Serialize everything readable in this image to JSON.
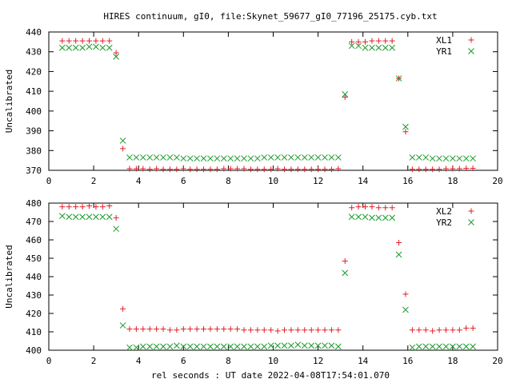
{
  "title": "HIRES continuum, gI0, file:Skynet_59677_gI0_77196_25175.cyb.txt",
  "xlabel": "rel seconds : UT date 2022-04-08T17:54:01.070",
  "chart_data": [
    {
      "type": "scatter",
      "ylabel": "Uncalibrated",
      "xlim": [
        0,
        20
      ],
      "ylim": [
        370,
        440
      ],
      "xticks": [
        0,
        2,
        4,
        6,
        8,
        10,
        12,
        14,
        16,
        18,
        20
      ],
      "yticks": [
        370,
        380,
        390,
        400,
        410,
        420,
        430,
        440
      ],
      "legend": "top-right",
      "series": [
        {
          "name": "XL1",
          "marker": "plus",
          "color": "#e0202a",
          "x": [
            0.6,
            0.9,
            1.2,
            1.5,
            1.8,
            2.1,
            2.4,
            2.7,
            3.0,
            3.3,
            3.6,
            3.9,
            4.2,
            4.5,
            4.8,
            5.1,
            5.4,
            5.7,
            6.0,
            6.3,
            6.6,
            6.9,
            7.2,
            7.5,
            7.8,
            8.1,
            8.4,
            8.7,
            9.0,
            9.3,
            9.6,
            9.9,
            10.2,
            10.5,
            10.8,
            11.1,
            11.4,
            11.7,
            12.0,
            12.3,
            12.6,
            12.9,
            13.2,
            13.5,
            13.8,
            14.1,
            14.4,
            14.7,
            15.0,
            15.3,
            15.6,
            15.9,
            16.2,
            16.5,
            16.8,
            17.1,
            17.4,
            17.7,
            18.0,
            18.3,
            18.6,
            18.9
          ],
          "y": [
            435.5,
            435.5,
            435.5,
            435.5,
            435.5,
            435.5,
            435.5,
            435.5,
            429.5,
            381,
            370.8,
            370.8,
            370.8,
            370.5,
            370.8,
            370.5,
            370.5,
            370.5,
            370.8,
            370.5,
            370.5,
            370.5,
            370.5,
            370.5,
            370.8,
            370.8,
            370.8,
            370.8,
            370.5,
            370.5,
            370.5,
            370.5,
            370.8,
            370.5,
            370.5,
            370.5,
            370.5,
            370.5,
            370.5,
            370.5,
            370.5,
            370.8,
            407,
            435,
            435,
            435,
            435.5,
            435.5,
            435.5,
            435.5,
            416.5,
            389.5,
            370.5,
            370.5,
            370.5,
            370.5,
            370.5,
            370.8,
            370.8,
            370.8,
            371,
            371
          ]
        },
        {
          "name": "YR1",
          "marker": "cross",
          "color": "#1a9a2a",
          "x": [
            0.6,
            0.9,
            1.2,
            1.5,
            1.8,
            2.1,
            2.4,
            2.7,
            3.0,
            3.3,
            3.6,
            3.9,
            4.2,
            4.5,
            4.8,
            5.1,
            5.4,
            5.7,
            6.0,
            6.3,
            6.6,
            6.9,
            7.2,
            7.5,
            7.8,
            8.1,
            8.4,
            8.7,
            9.0,
            9.3,
            9.6,
            9.9,
            10.2,
            10.5,
            10.8,
            11.1,
            11.4,
            11.7,
            12.0,
            12.3,
            12.6,
            12.9,
            13.2,
            13.5,
            13.8,
            14.1,
            14.4,
            14.7,
            15.0,
            15.3,
            15.6,
            15.9,
            16.2,
            16.5,
            16.8,
            17.1,
            17.4,
            17.7,
            18.0,
            18.3,
            18.6,
            18.9
          ],
          "y": [
            432,
            432,
            432,
            432,
            432.5,
            432.5,
            432,
            432,
            427.5,
            385,
            376.5,
            376.5,
            376.5,
            376.5,
            376.5,
            376.5,
            376.5,
            376.5,
            376,
            376,
            376,
            376,
            376,
            376,
            376,
            376,
            376,
            376,
            376,
            376,
            376.5,
            376.5,
            376.5,
            376.5,
            376.5,
            376.5,
            376.5,
            376.5,
            376.5,
            376.5,
            376.5,
            376.5,
            408.5,
            433,
            433,
            432,
            432,
            432,
            432,
            432,
            416.5,
            392,
            376.5,
            376.5,
            376.5,
            376,
            376,
            376,
            376,
            376,
            376,
            376
          ]
        }
      ]
    },
    {
      "type": "scatter",
      "ylabel": "Uncalibrated",
      "xlim": [
        0,
        20
      ],
      "ylim": [
        400,
        480
      ],
      "xticks": [
        0,
        2,
        4,
        6,
        8,
        10,
        12,
        14,
        16,
        18,
        20
      ],
      "yticks": [
        400,
        410,
        420,
        430,
        440,
        450,
        460,
        470,
        480
      ],
      "legend": "top-right",
      "series": [
        {
          "name": "XL2",
          "marker": "plus",
          "color": "#e0202a",
          "x": [
            0.6,
            0.9,
            1.2,
            1.5,
            1.8,
            2.1,
            2.4,
            2.7,
            3.0,
            3.3,
            3.6,
            3.9,
            4.2,
            4.5,
            4.8,
            5.1,
            5.4,
            5.7,
            6.0,
            6.3,
            6.6,
            6.9,
            7.2,
            7.5,
            7.8,
            8.1,
            8.4,
            8.7,
            9.0,
            9.3,
            9.6,
            9.9,
            10.2,
            10.5,
            10.8,
            11.1,
            11.4,
            11.7,
            12.0,
            12.3,
            12.6,
            12.9,
            13.2,
            13.5,
            13.8,
            14.1,
            14.4,
            14.7,
            15.0,
            15.3,
            15.6,
            15.9,
            16.2,
            16.5,
            16.8,
            17.1,
            17.4,
            17.7,
            18.0,
            18.3,
            18.6,
            18.9
          ],
          "y": [
            478,
            478,
            478,
            478,
            478.5,
            478,
            478,
            478.5,
            472,
            422.5,
            411.5,
            411.5,
            411.5,
            411.5,
            411.5,
            411.5,
            411,
            411,
            411.5,
            411.5,
            411.5,
            411.5,
            411.5,
            411.5,
            411.5,
            411.5,
            411.5,
            411,
            411,
            411,
            411,
            411,
            410.5,
            411,
            411,
            411,
            411,
            411,
            411,
            411,
            411,
            411,
            448.5,
            477.5,
            478,
            478,
            478,
            477.5,
            477.5,
            477.5,
            458.5,
            430.5,
            411,
            411,
            411,
            410.5,
            411,
            411,
            411,
            411,
            412,
            412
          ]
        },
        {
          "name": "YR2",
          "marker": "cross",
          "color": "#1a9a2a",
          "x": [
            0.6,
            0.9,
            1.2,
            1.5,
            1.8,
            2.1,
            2.4,
            2.7,
            3.0,
            3.3,
            3.6,
            3.9,
            4.2,
            4.5,
            4.8,
            5.1,
            5.4,
            5.7,
            6.0,
            6.3,
            6.6,
            6.9,
            7.2,
            7.5,
            7.8,
            8.1,
            8.4,
            8.7,
            9.0,
            9.3,
            9.6,
            9.9,
            10.2,
            10.5,
            10.8,
            11.1,
            11.4,
            11.7,
            12.0,
            12.3,
            12.6,
            12.9,
            13.2,
            13.5,
            13.8,
            14.1,
            14.4,
            14.7,
            15.0,
            15.3,
            15.6,
            15.9,
            16.2,
            16.5,
            16.8,
            17.1,
            17.4,
            17.7,
            18.0,
            18.3,
            18.6,
            18.9
          ],
          "y": [
            473,
            472.5,
            472.5,
            472.5,
            472.5,
            472.5,
            472.5,
            472.5,
            466,
            413.5,
            401.5,
            401.5,
            402,
            402,
            402,
            402,
            402,
            402.5,
            402,
            402,
            402,
            402,
            402,
            402,
            402,
            402,
            402,
            402,
            402,
            402,
            402,
            402.5,
            402.5,
            402.5,
            402.5,
            403,
            402.5,
            402.5,
            402.5,
            402.5,
            402.5,
            402,
            442,
            472.5,
            472.5,
            472.5,
            472,
            472,
            472,
            472,
            452,
            422,
            401.5,
            402,
            402,
            402,
            402,
            402,
            402,
            402,
            402,
            402
          ]
        }
      ]
    }
  ]
}
